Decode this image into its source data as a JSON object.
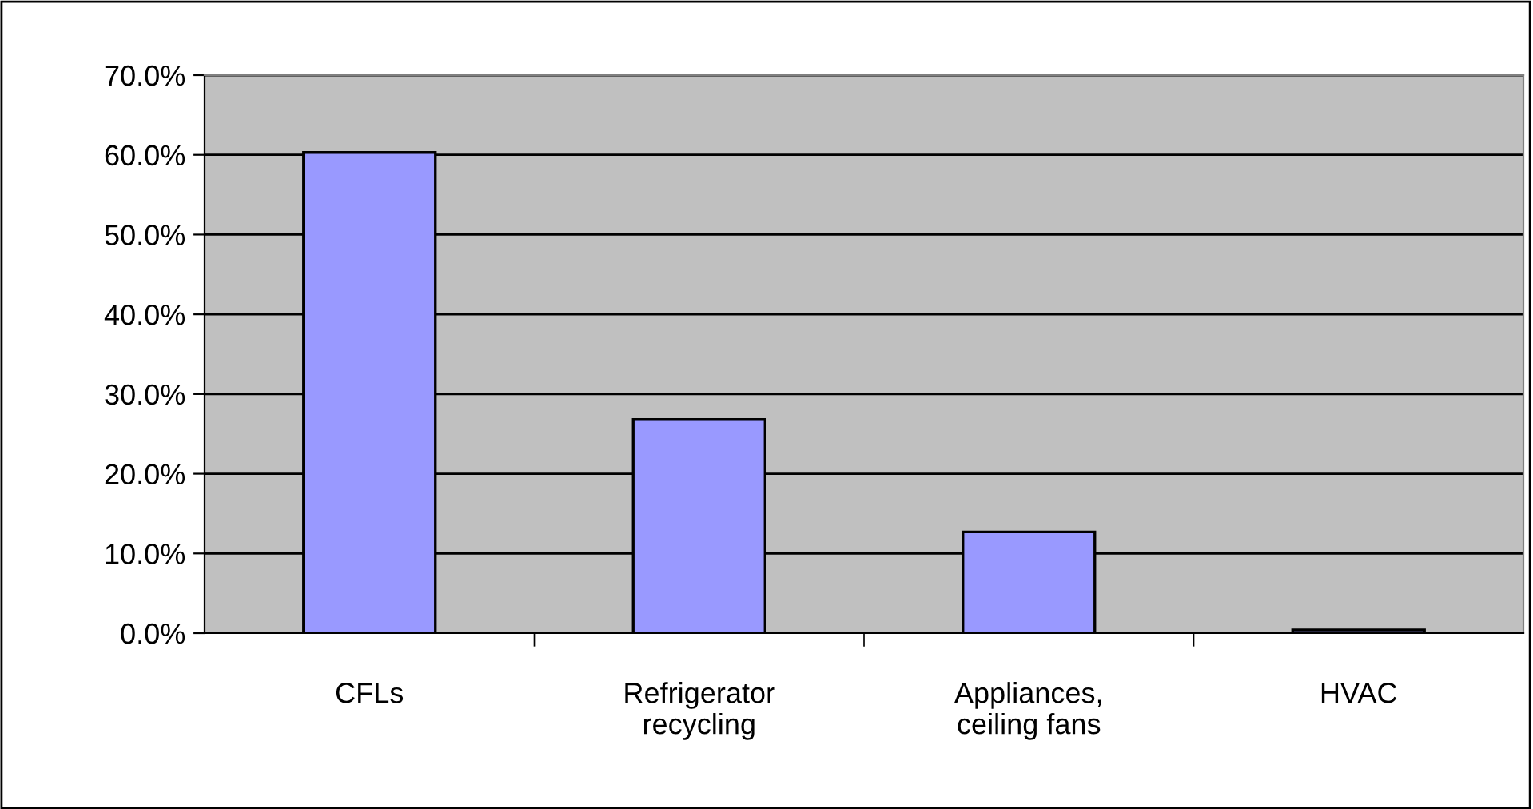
{
  "chart_data": {
    "type": "bar",
    "categories": [
      "CFLs",
      "Refrigerator\nrecycling",
      "Appliances,\nceiling fans",
      "HVAC"
    ],
    "values": [
      60.3,
      26.8,
      12.7,
      0.4
    ],
    "color": "#9999ff",
    "ylim": [
      0,
      70
    ],
    "yticks": [
      {
        "value": 0,
        "label": "0.0%"
      },
      {
        "value": 10,
        "label": "10.0%"
      },
      {
        "value": 20,
        "label": "20.0%"
      },
      {
        "value": 30,
        "label": "30.0%"
      },
      {
        "value": 40,
        "label": "40.0%"
      },
      {
        "value": 50,
        "label": "50.0%"
      },
      {
        "value": 60,
        "label": "60.0%"
      },
      {
        "value": 70,
        "label": "70.0%"
      }
    ],
    "grid": "y",
    "legend": false
  }
}
